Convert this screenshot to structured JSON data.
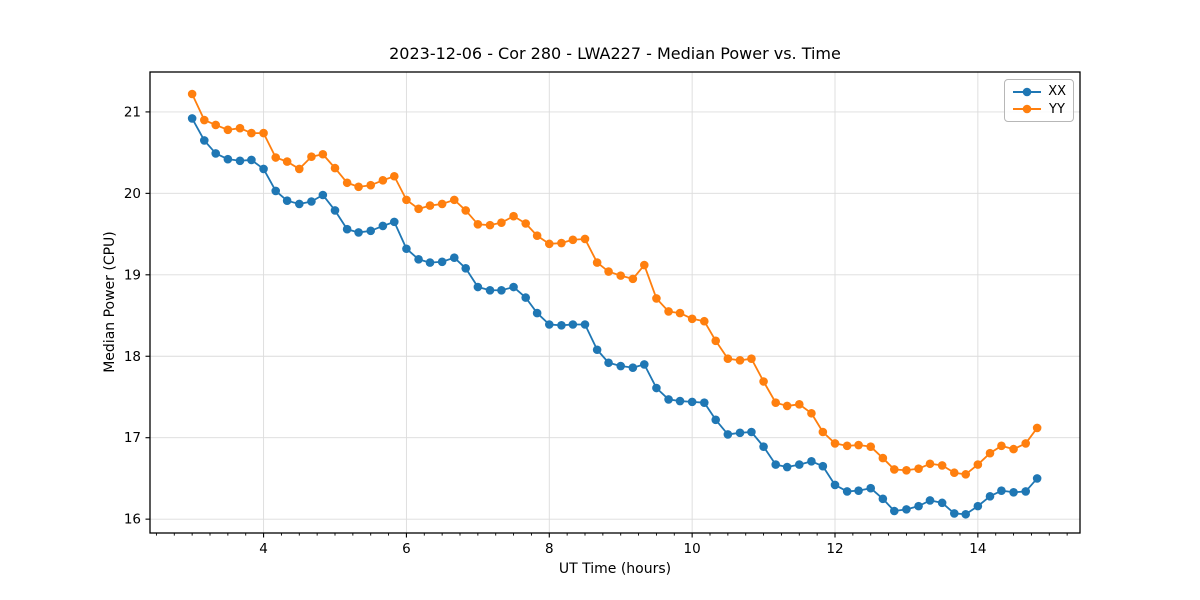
{
  "chart_data": {
    "type": "line",
    "title": "2023-12-06 - Cor 280 - LWA227 - Median Power vs. Time",
    "xlabel": "UT Time (hours)",
    "ylabel": "Median Power (CPU)",
    "xlim": [
      2.41,
      15.43
    ],
    "ylim": [
      15.83,
      21.49
    ],
    "xticks": [
      4,
      6,
      8,
      10,
      12,
      14
    ],
    "x_minor_tick_step": 0.25,
    "yticks": [
      16,
      17,
      18,
      19,
      20,
      21
    ],
    "grid": "major",
    "legend_position": "upper right",
    "x": [
      3.0,
      3.17,
      3.33,
      3.5,
      3.67,
      3.83,
      4.0,
      4.17,
      4.33,
      4.5,
      4.67,
      4.83,
      5.0,
      5.17,
      5.33,
      5.5,
      5.67,
      5.83,
      6.0,
      6.17,
      6.33,
      6.5,
      6.67,
      6.83,
      7.0,
      7.17,
      7.33,
      7.5,
      7.67,
      7.83,
      8.0,
      8.17,
      8.33,
      8.5,
      8.67,
      8.83,
      9.0,
      9.17,
      9.33,
      9.5,
      9.67,
      9.83,
      10.0,
      10.17,
      10.33,
      10.5,
      10.67,
      10.83,
      11.0,
      11.17,
      11.33,
      11.5,
      11.67,
      11.83,
      12.0,
      12.17,
      12.33,
      12.5,
      12.67,
      12.83,
      13.0,
      13.17,
      13.33,
      13.5,
      13.67,
      13.83,
      14.0,
      14.17,
      14.33,
      14.5,
      14.67,
      14.83
    ],
    "series": [
      {
        "name": "XX",
        "color": "#1f77b4",
        "values": [
          20.92,
          20.65,
          20.49,
          20.42,
          20.4,
          20.41,
          20.3,
          20.03,
          19.91,
          19.87,
          19.9,
          19.98,
          19.79,
          19.56,
          19.52,
          19.54,
          19.6,
          19.65,
          19.32,
          19.19,
          19.15,
          19.16,
          19.21,
          19.08,
          18.85,
          18.81,
          18.81,
          18.85,
          18.72,
          18.53,
          18.39,
          18.38,
          18.39,
          18.39,
          18.08,
          17.92,
          17.88,
          17.86,
          17.9,
          17.61,
          17.47,
          17.45,
          17.44,
          17.43,
          17.22,
          17.04,
          17.06,
          17.07,
          16.89,
          16.67,
          16.64,
          16.67,
          16.71,
          16.65,
          16.42,
          16.34,
          16.35,
          16.38,
          16.25,
          16.1,
          16.12,
          16.16,
          16.23,
          16.2,
          16.07,
          16.06,
          16.16,
          16.28,
          16.35,
          16.33,
          16.34,
          16.5
        ]
      },
      {
        "name": "YY",
        "color": "#ff7f0e",
        "values": [
          21.22,
          20.9,
          20.84,
          20.78,
          20.8,
          20.74,
          20.74,
          20.44,
          20.39,
          20.3,
          20.45,
          20.48,
          20.31,
          20.13,
          20.08,
          20.1,
          20.16,
          20.21,
          19.92,
          19.81,
          19.85,
          19.87,
          19.92,
          19.79,
          19.62,
          19.61,
          19.64,
          19.72,
          19.63,
          19.48,
          19.38,
          19.39,
          19.43,
          19.44,
          19.15,
          19.04,
          18.99,
          18.95,
          19.12,
          18.71,
          18.55,
          18.53,
          18.46,
          18.43,
          18.19,
          17.97,
          17.95,
          17.97,
          17.69,
          17.43,
          17.39,
          17.41,
          17.3,
          17.07,
          16.93,
          16.9,
          16.91,
          16.89,
          16.75,
          16.61,
          16.6,
          16.62,
          16.68,
          16.66,
          16.57,
          16.55,
          16.67,
          16.81,
          16.9,
          16.86,
          16.93,
          17.12
        ]
      }
    ]
  }
}
